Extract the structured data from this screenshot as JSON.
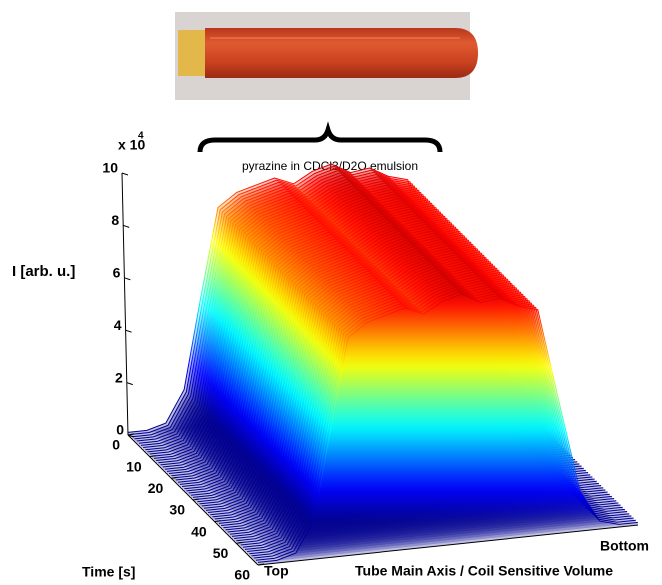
{
  "chart_data": {
    "type": "surface3d",
    "annotation": "pyrazine in CDCl3/D2O emulsion",
    "zlabel": "I [arb. u.]",
    "zscale_label": "x 10",
    "zscale_exponent": "4",
    "ylabel": "Time [s]",
    "xlabel": "Tube Main Axis / Coil Sensitive Volume",
    "categories": [
      "Top",
      null,
      null,
      null,
      null,
      null,
      null,
      null,
      null,
      null,
      null,
      null,
      null,
      null,
      null,
      null,
      null,
      null,
      null,
      null,
      "Bottom"
    ],
    "values": [
      0.1,
      0.1,
      0.3,
      1.5,
      5,
      8.3,
      8.8,
      9,
      9.2,
      8.9,
      9.3,
      9.5,
      9.1,
      9.2,
      8.8,
      8.6,
      5,
      1.5,
      0.3,
      0.1,
      0.1
    ],
    "ylim": [
      0,
      60
    ],
    "yticks": [
      0,
      10,
      20,
      30,
      40,
      50,
      60
    ],
    "zlim": [
      0,
      10
    ],
    "zticks": [
      0,
      2,
      4,
      6,
      8,
      10
    ],
    "colormap": "jet"
  }
}
